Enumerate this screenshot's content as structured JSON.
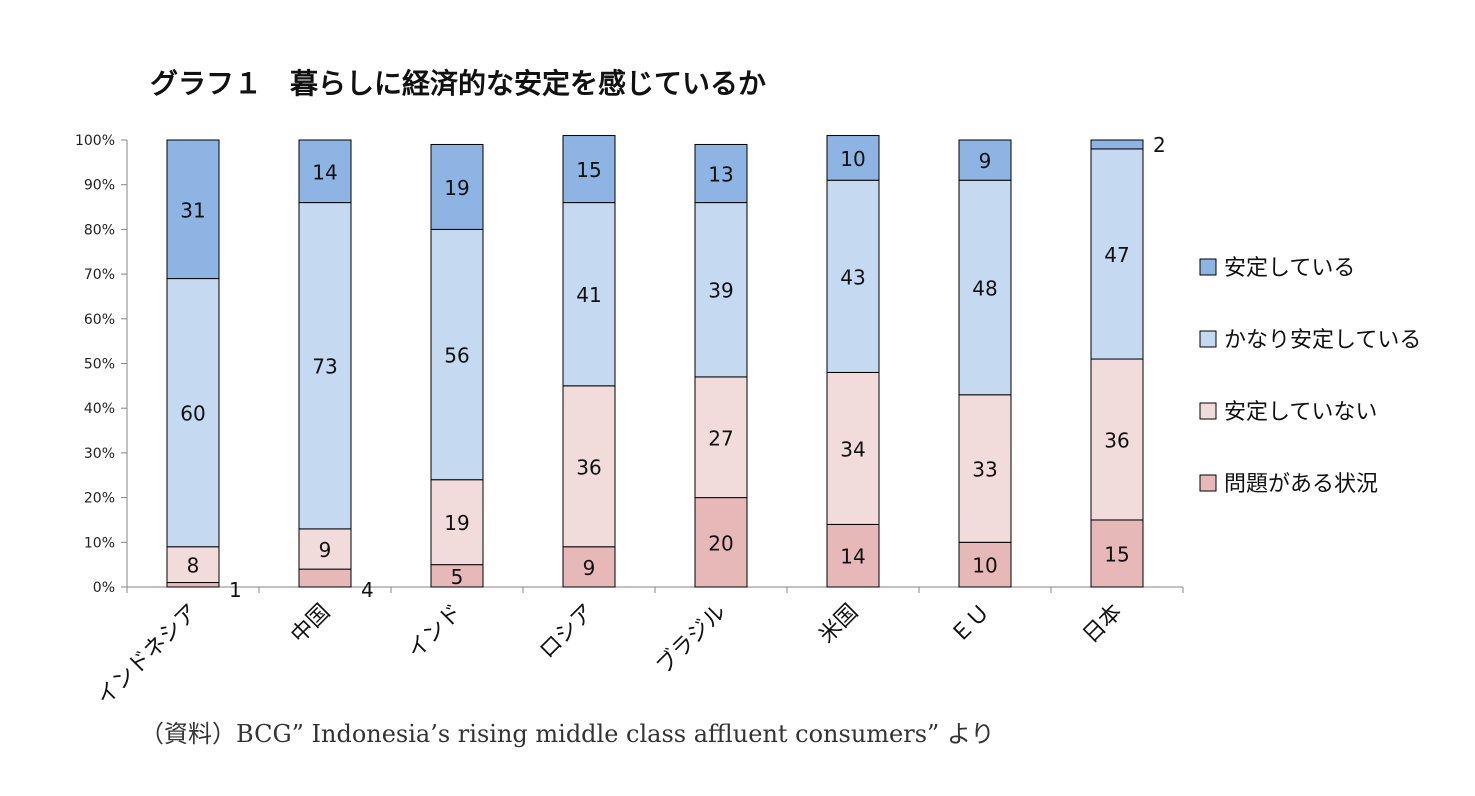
{
  "chart_data": {
    "type": "bar",
    "stacked": true,
    "percent": true,
    "title": "グラフ１　暮らしに経済的な安定を感じているか",
    "xlabel": "",
    "ylabel": "",
    "ylim": [
      0,
      100
    ],
    "y_ticks": [
      "0%",
      "10%",
      "20%",
      "30%",
      "40%",
      "50%",
      "60%",
      "70%",
      "80%",
      "90%",
      "100%"
    ],
    "categories": [
      "インドネシア",
      "中国",
      "インド",
      "ロシア",
      "ブラジル",
      "米国",
      "ＥＵ",
      "日本"
    ],
    "series": [
      {
        "name": "問題がある状況",
        "color": "#e6b9b8",
        "values": [
          1,
          4,
          5,
          9,
          20,
          14,
          10,
          15
        ]
      },
      {
        "name": "安定していない",
        "color": "#f2dcdb",
        "values": [
          8,
          9,
          19,
          36,
          27,
          34,
          33,
          36
        ]
      },
      {
        "name": "かなり安定している",
        "color": "#c5d9f1",
        "values": [
          60,
          73,
          56,
          41,
          39,
          43,
          48,
          47
        ]
      },
      {
        "name": "安定している",
        "color": "#8db4e2",
        "values": [
          31,
          14,
          19,
          15,
          13,
          10,
          9,
          2
        ]
      }
    ],
    "legend_order": [
      "安定している",
      "かなり安定している",
      "安定していない",
      "問題がある状況"
    ],
    "legend_position": "right",
    "grid": false
  },
  "source_note": "（資料）BCG” Indonesia’s rising middle class affluent consumers” より"
}
